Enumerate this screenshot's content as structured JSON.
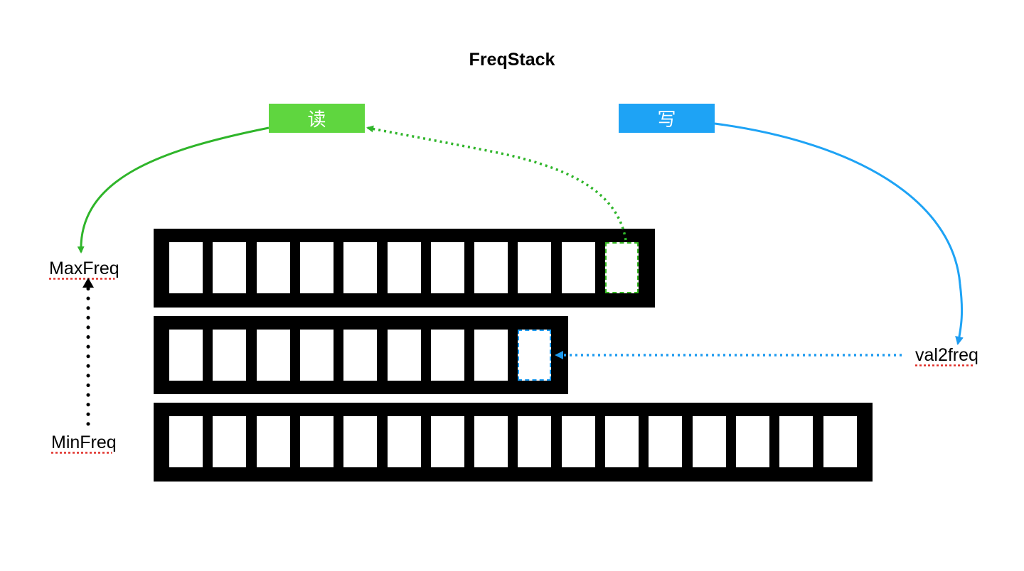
{
  "title": "FreqStack",
  "buttons": {
    "read": "读",
    "write": "写"
  },
  "labels": {
    "max_freq": "MaxFreq",
    "min_freq": "MinFreq",
    "val2freq": "val2freq"
  },
  "stacks": [
    {
      "cells": 11,
      "highlight": "green",
      "highlight_index": 10
    },
    {
      "cells": 9,
      "highlight": "blue",
      "highlight_index": 8
    },
    {
      "cells": 16
    }
  ],
  "colors": {
    "read": "#5fd63f",
    "write": "#1ea3f5",
    "green_arrow": "#2fb52a",
    "blue_arrow": "#1e9bf0"
  }
}
